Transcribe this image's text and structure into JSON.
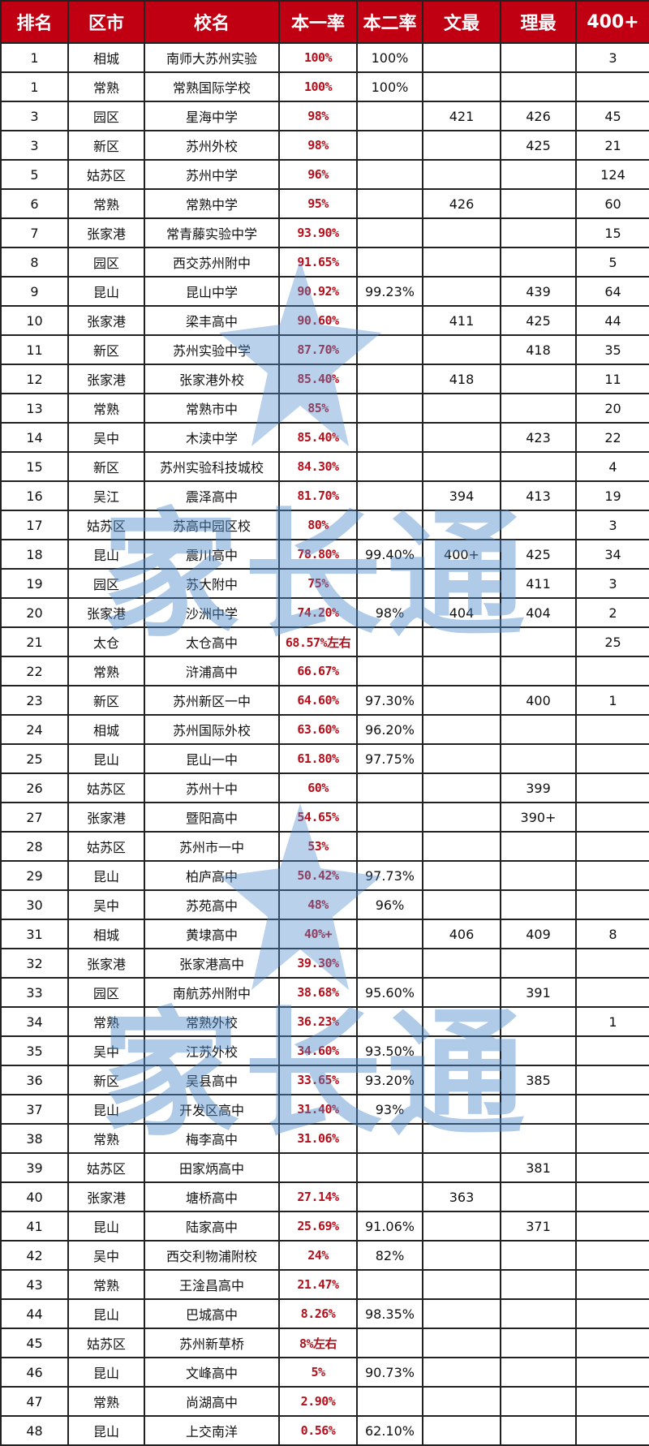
{
  "colors": {
    "header_bg": "#c00012",
    "header_text": "#ffffff",
    "rate_text": "#b4101c",
    "watermark": "#508ccd"
  },
  "watermark": {
    "text": "家长通",
    "icon": "star-logo-icon"
  },
  "table": {
    "headers": [
      "排名",
      "区市",
      "校名",
      "本一率",
      "本二率",
      "文最",
      "理最",
      "400+"
    ],
    "rows": [
      [
        "1",
        "相城",
        "南师大苏州实验",
        "100%",
        "100%",
        "",
        "",
        "3"
      ],
      [
        "1",
        "常熟",
        "常熟国际学校",
        "100%",
        "100%",
        "",
        "",
        ""
      ],
      [
        "3",
        "园区",
        "星海中学",
        "98%",
        "",
        "421",
        "426",
        "45"
      ],
      [
        "3",
        "新区",
        "苏州外校",
        "98%",
        "",
        "",
        "425",
        "21"
      ],
      [
        "5",
        "姑苏区",
        "苏州中学",
        "96%",
        "",
        "",
        "",
        "124"
      ],
      [
        "6",
        "常熟",
        "常熟中学",
        "95%",
        "",
        "426",
        "",
        "60"
      ],
      [
        "7",
        "张家港",
        "常青藤实验中学",
        "93.90%",
        "",
        "",
        "",
        "15"
      ],
      [
        "8",
        "园区",
        "西交苏州附中",
        "91.65%",
        "",
        "",
        "",
        "5"
      ],
      [
        "9",
        "昆山",
        "昆山中学",
        "90.92%",
        "99.23%",
        "",
        "439",
        "64"
      ],
      [
        "10",
        "张家港",
        "梁丰高中",
        "90.60%",
        "",
        "411",
        "425",
        "44"
      ],
      [
        "11",
        "新区",
        "苏州实验中学",
        "87.70%",
        "",
        "",
        "418",
        "35"
      ],
      [
        "12",
        "张家港",
        "张家港外校",
        "85.40%",
        "",
        "418",
        "",
        "11"
      ],
      [
        "13",
        "常熟",
        "常熟市中",
        "85%",
        "",
        "",
        "",
        "20"
      ],
      [
        "14",
        "吴中",
        "木渎中学",
        "85.40%",
        "",
        "",
        "423",
        "22"
      ],
      [
        "15",
        "新区",
        "苏州实验科技城校",
        "84.30%",
        "",
        "",
        "",
        "4"
      ],
      [
        "16",
        "吴江",
        "震泽高中",
        "81.70%",
        "",
        "394",
        "413",
        "19"
      ],
      [
        "17",
        "姑苏区",
        "苏高中园区校",
        "80%",
        "",
        "",
        "",
        "3"
      ],
      [
        "18",
        "昆山",
        "震川高中",
        "78.80%",
        "99.40%",
        "400+",
        "425",
        "34"
      ],
      [
        "19",
        "园区",
        "苏大附中",
        "75%",
        "",
        "",
        "411",
        "3"
      ],
      [
        "20",
        "张家港",
        "沙洲中学",
        "74.20%",
        "98%",
        "404",
        "404",
        "2"
      ],
      [
        "21",
        "太仓",
        "太仓高中",
        "68.57%左右",
        "",
        "",
        "",
        "25"
      ],
      [
        "22",
        "常熟",
        "浒浦高中",
        "66.67%",
        "",
        "",
        "",
        ""
      ],
      [
        "23",
        "新区",
        "苏州新区一中",
        "64.60%",
        "97.30%",
        "",
        "400",
        "1"
      ],
      [
        "24",
        "相城",
        "苏州国际外校",
        "63.60%",
        "96.20%",
        "",
        "",
        ""
      ],
      [
        "25",
        "昆山",
        "昆山一中",
        "61.80%",
        "97.75%",
        "",
        "",
        ""
      ],
      [
        "26",
        "姑苏区",
        "苏州十中",
        "60%",
        "",
        "",
        "399",
        ""
      ],
      [
        "27",
        "张家港",
        "暨阳高中",
        "54.65%",
        "",
        "",
        "390+",
        ""
      ],
      [
        "28",
        "姑苏区",
        "苏州市一中",
        "53%",
        "",
        "",
        "",
        ""
      ],
      [
        "29",
        "昆山",
        "柏庐高中",
        "50.42%",
        "97.73%",
        "",
        "",
        ""
      ],
      [
        "30",
        "吴中",
        "苏苑高中",
        "48%",
        "96%",
        "",
        "",
        ""
      ],
      [
        "31",
        "相城",
        "黄埭高中",
        "40%+",
        "",
        "406",
        "409",
        "8"
      ],
      [
        "32",
        "张家港",
        "张家港高中",
        "39.30%",
        "",
        "",
        "",
        ""
      ],
      [
        "33",
        "园区",
        "南航苏州附中",
        "38.68%",
        "95.60%",
        "",
        "391",
        ""
      ],
      [
        "34",
        "常熟",
        "常熟外校",
        "36.23%",
        "",
        "",
        "",
        "1"
      ],
      [
        "35",
        "吴中",
        "江苏外校",
        "34.60%",
        "93.50%",
        "",
        "",
        ""
      ],
      [
        "36",
        "新区",
        "吴县高中",
        "33.65%",
        "93.20%",
        "",
        "385",
        ""
      ],
      [
        "37",
        "昆山",
        "开发区高中",
        "31.40%",
        "93%",
        "",
        "",
        ""
      ],
      [
        "38",
        "常熟",
        "梅李高中",
        "31.06%",
        "",
        "",
        "",
        ""
      ],
      [
        "39",
        "姑苏区",
        "田家炳高中",
        "",
        "",
        "",
        "381",
        ""
      ],
      [
        "40",
        "张家港",
        "塘桥高中",
        "27.14%",
        "",
        "363",
        "",
        ""
      ],
      [
        "41",
        "昆山",
        "陆家高中",
        "25.69%",
        "91.06%",
        "",
        "371",
        ""
      ],
      [
        "42",
        "吴中",
        "西交利物浦附校",
        "24%",
        "82%",
        "",
        "",
        ""
      ],
      [
        "43",
        "常熟",
        "王淦昌高中",
        "21.47%",
        "",
        "",
        "",
        ""
      ],
      [
        "44",
        "昆山",
        "巴城高中",
        "8.26%",
        "98.35%",
        "",
        "",
        ""
      ],
      [
        "45",
        "姑苏区",
        "苏州新草桥",
        "8%左右",
        "",
        "",
        "",
        ""
      ],
      [
        "46",
        "昆山",
        "文峰高中",
        "5%",
        "90.73%",
        "",
        "",
        ""
      ],
      [
        "47",
        "常熟",
        "尚湖高中",
        "2.90%",
        "",
        "",
        "",
        ""
      ],
      [
        "48",
        "昆山",
        "上交南洋",
        "0.56%",
        "62.10%",
        "",
        "",
        ""
      ]
    ]
  }
}
